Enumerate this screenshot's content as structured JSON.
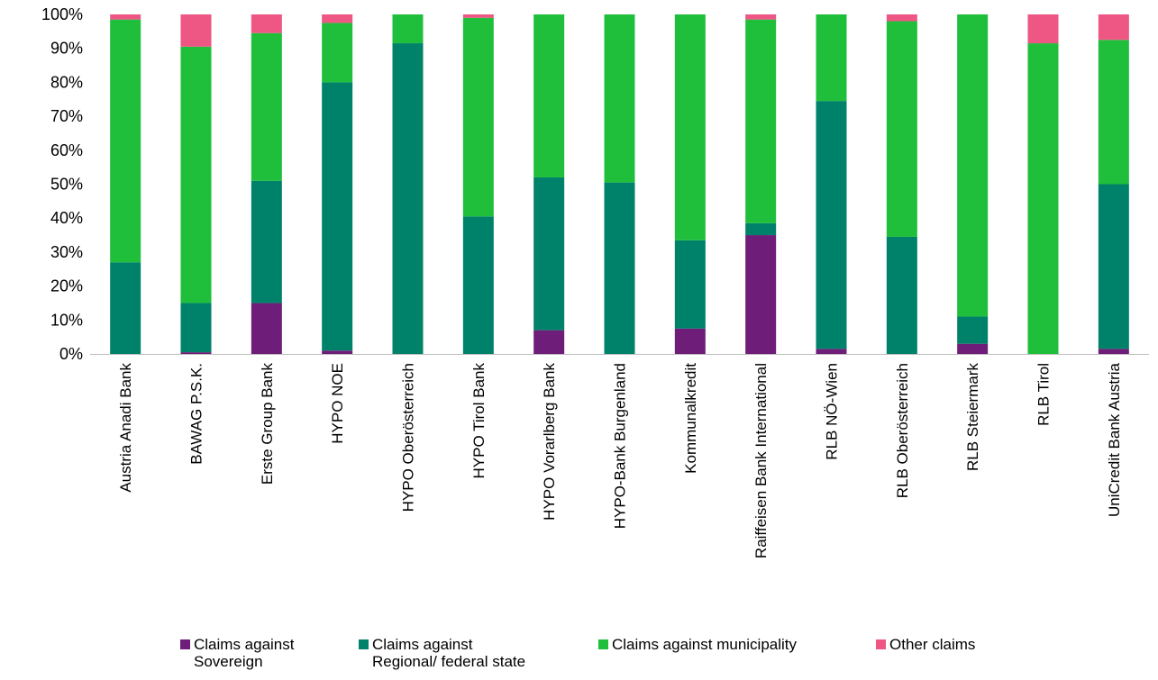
{
  "chart_data": {
    "type": "bar",
    "stacked": true,
    "normalized": true,
    "categories": [
      "Austria Anadi Bank",
      "BAWAG P.S.K.",
      "Erste Group Bank",
      "HYPO NOE",
      "HYPO Oberösterreich",
      "HYPO Tirol Bank",
      "HYPO Vorarlberg Bank",
      "HYPO-Bank Burgenland",
      "Kommunalkredit",
      "Raiffeisen Bank International",
      "RLB NÖ-Wien",
      "RLB Oberösterreich",
      "RLB Steiermark",
      "RLB Tirol",
      "UniCredit Bank Austria"
    ],
    "series": [
      {
        "name": "Claims against Sovereign",
        "color": "#6E1E78",
        "values": [
          0,
          0.5,
          15,
          1,
          0,
          0,
          7,
          0,
          7.5,
          35,
          1.5,
          0,
          3,
          0,
          1.5
        ]
      },
      {
        "name": "Claims against Regional/ federal state",
        "color": "#00826A",
        "values": [
          27,
          14.5,
          36,
          79,
          91.5,
          40.5,
          45,
          50.5,
          26,
          3.5,
          73,
          34.5,
          8,
          0,
          48.5
        ]
      },
      {
        "name": "Claims against municipality",
        "color": "#1FBF3C",
        "values": [
          71.5,
          75.5,
          43.5,
          17.5,
          8.5,
          58.5,
          48,
          49.5,
          66.5,
          60,
          25.5,
          63.5,
          89,
          91.5,
          42.5
        ]
      },
      {
        "name": "Other claims",
        "color": "#EE5684",
        "values": [
          1.5,
          9.5,
          5.5,
          2.5,
          0,
          1,
          0,
          0,
          0,
          1.5,
          0,
          2,
          0,
          8.5,
          7.5
        ]
      }
    ],
    "yticks": [
      "0%",
      "10%",
      "20%",
      "30%",
      "40%",
      "50%",
      "60%",
      "70%",
      "80%",
      "90%",
      "100%"
    ],
    "ylim": [
      0,
      100
    ],
    "grid": false,
    "legend_position": "bottom",
    "legend_labels": [
      [
        "Claims against",
        "Sovereign"
      ],
      [
        "Claims against",
        "Regional/ federal state"
      ],
      [
        "Claims against municipality"
      ],
      [
        "Other claims"
      ]
    ]
  }
}
